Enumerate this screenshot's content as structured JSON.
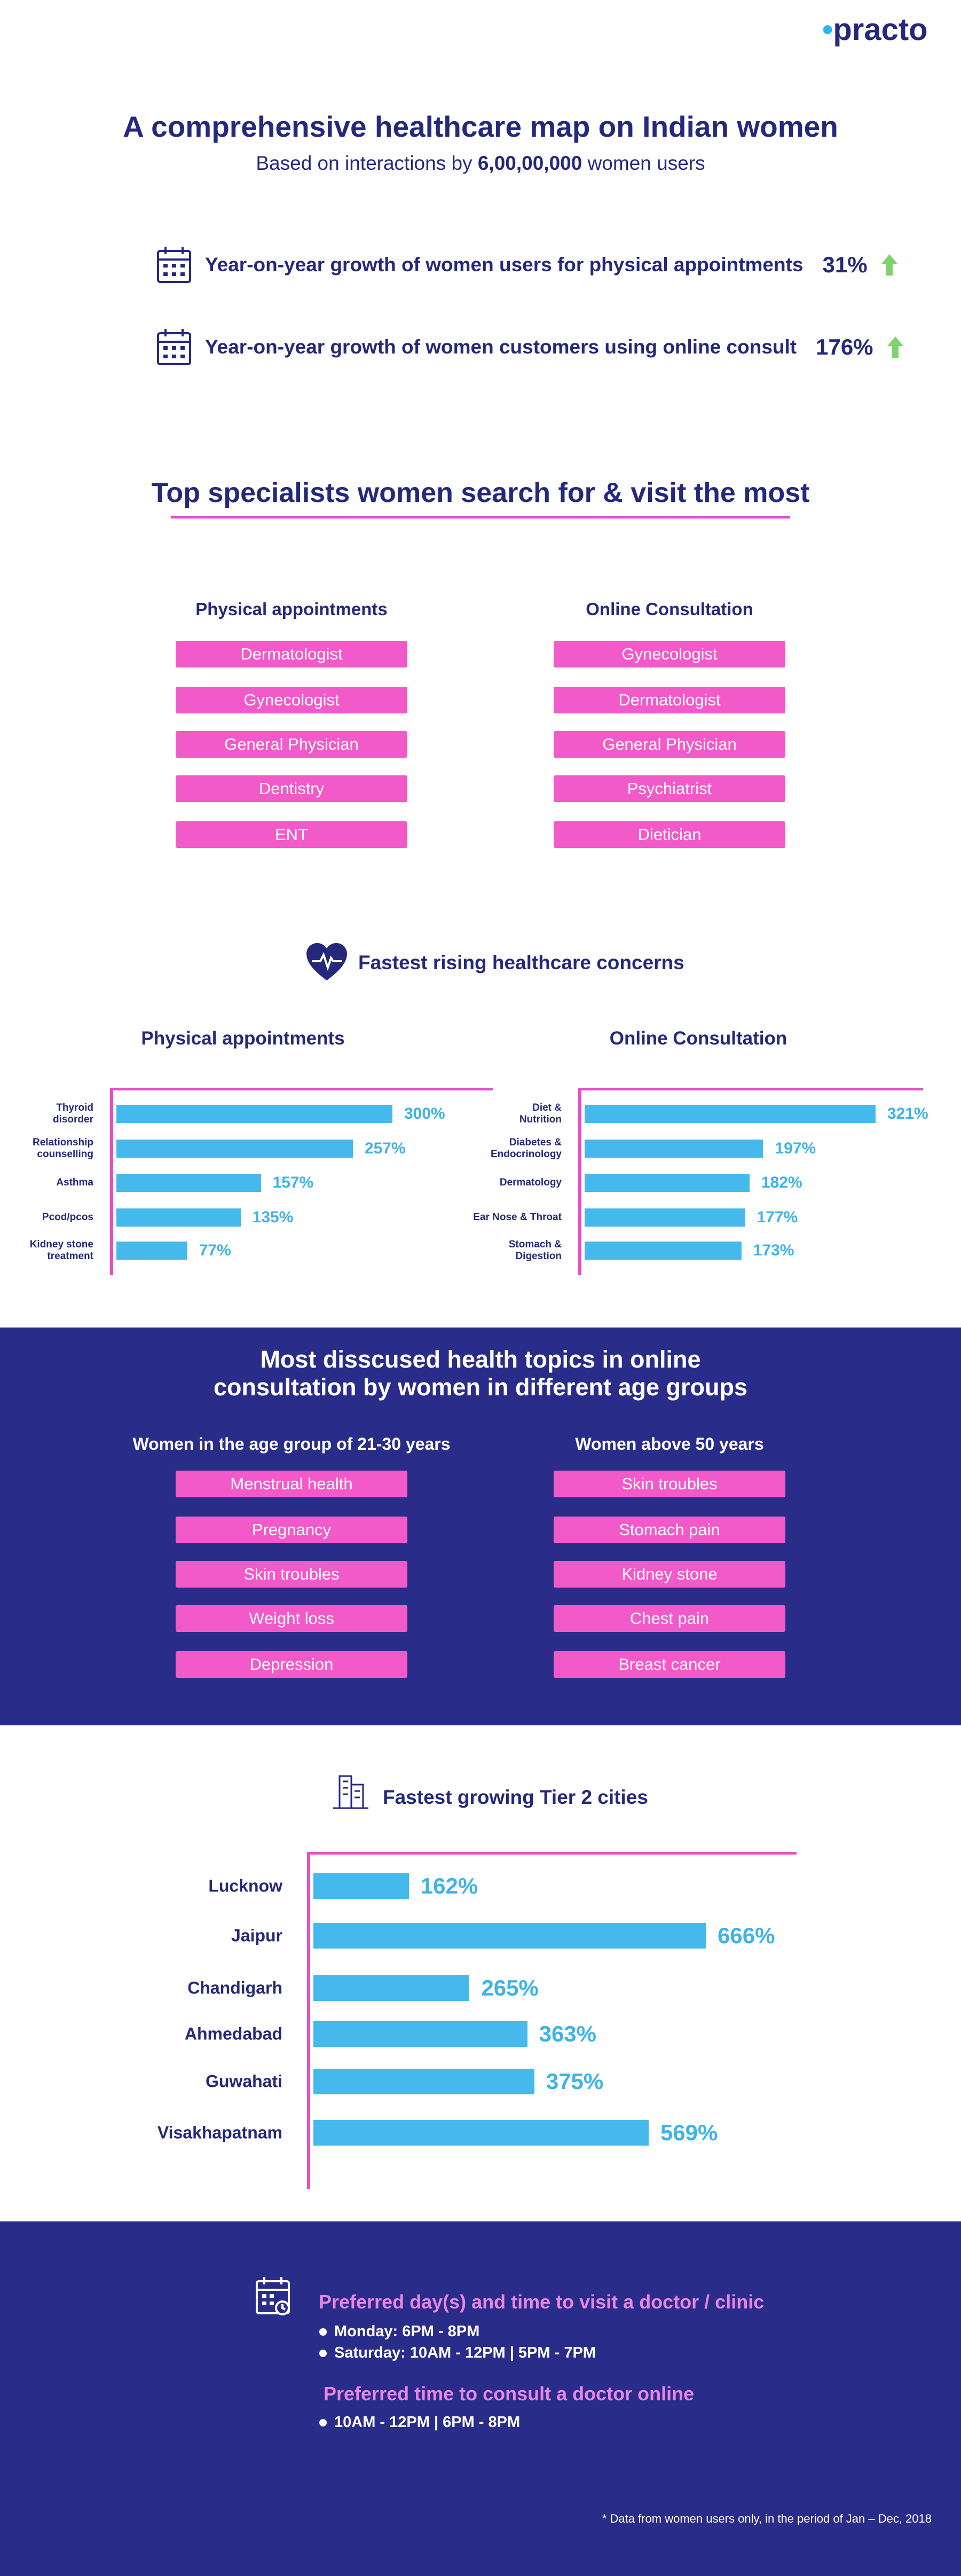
{
  "logo": "practo",
  "header": {
    "title": "A comprehensive healthcare map on Indian women",
    "subtitle_prefix": "Based on interactions by",
    "subtitle_number": "6,00,00,000",
    "subtitle_suffix": "women users"
  },
  "stats": [
    {
      "text": "Year-on-year growth of women users for physical appointments",
      "value": "31%"
    },
    {
      "text": "Year-on-year growth of women customers using online consult",
      "value": "176%"
    }
  ],
  "specialists": {
    "title": "Top specialists women search for & visit the most",
    "columns": [
      {
        "heading": "Physical appointments",
        "items": [
          "Dermatologist",
          "Gynecologist",
          "General Physician",
          "Dentistry",
          "ENT"
        ]
      },
      {
        "heading": "Online Consultation",
        "items": [
          "Gynecologist",
          "Dermatologist",
          "General Physician",
          "Psychiatrist",
          "Dietician"
        ]
      }
    ]
  },
  "concerns": {
    "title": "Fastest rising healthcare concerns"
  },
  "chart_data": [
    {
      "type": "bar",
      "orientation": "horizontal",
      "title": "Physical appointments",
      "categories": [
        "Thyroid\ndisorder",
        "Relationship\ncounselling",
        "Asthma",
        "Pcod/pcos",
        "Kidney stone\ntreatment"
      ],
      "values": [
        300,
        257,
        157,
        135,
        77
      ],
      "value_labels": [
        "300%",
        "257%",
        "157%",
        "135%",
        "77%"
      ],
      "color": "#45b8ec"
    },
    {
      "type": "bar",
      "orientation": "horizontal",
      "title": "Online Consultation",
      "categories": [
        "Diet &\nNutrition",
        "Diabetes &\nEndocrinology",
        "Dermatology",
        "Ear Nose & Throat",
        "Stomach &\nDigestion"
      ],
      "values": [
        321,
        197,
        182,
        177,
        173
      ],
      "value_labels": [
        "321%",
        "197%",
        "182%",
        "177%",
        "173%"
      ],
      "color": "#45b8ec"
    },
    {
      "type": "bar",
      "orientation": "horizontal",
      "title": "Fastest growing Tier 2 cities",
      "categories": [
        "Lucknow",
        "Jaipur",
        "Chandigarh",
        "Ahmedabad",
        "Guwahati",
        "Visakhapatnam"
      ],
      "values": [
        162,
        666,
        265,
        363,
        375,
        569
      ],
      "value_labels": [
        "162%",
        "666%",
        "265%",
        "363%",
        "375%",
        "569%"
      ],
      "color": "#45b8ec"
    }
  ],
  "topics": {
    "title": "Most disscused health topics in online consultation by women in different age groups",
    "columns": [
      {
        "heading": "Women in the age group of 21-30 years",
        "items": [
          "Menstrual health",
          "Pregnancy",
          "Skin troubles",
          "Weight loss",
          "Depression"
        ]
      },
      {
        "heading": "Women above 50 years",
        "items": [
          "Skin troubles",
          "Stomach pain",
          "Kidney stone",
          "Chest pain",
          "Breast cancer"
        ]
      }
    ]
  },
  "preferences": {
    "visit_title": "Preferred day(s) and time to visit a doctor / clinic",
    "visit_items": [
      "Monday: 6PM - 8PM",
      "Saturday: 10AM - 12PM | 5PM - 7PM"
    ],
    "online_title": "Preferred time to consult a doctor online",
    "online_items": [
      "10AM - 12PM | 6PM - 8PM"
    ]
  },
  "footnote": "* Data from women users only, in the period of Jan – Dec, 2018"
}
